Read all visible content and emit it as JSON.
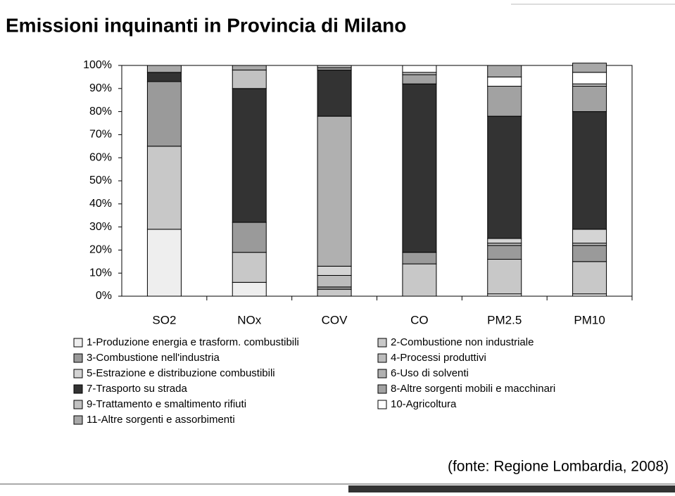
{
  "chart_data": {
    "type": "stacked_bar",
    "title": "Emissioni inquinanti in Provincia di Milano",
    "source": "(fonte: Regione Lombardia, 2008)",
    "categories": [
      "SO2",
      "NOx",
      "COV",
      "CO",
      "PM2.5",
      "PM10"
    ],
    "ylim": [
      0,
      100
    ],
    "yticks": [
      {
        "value": 0,
        "label": "0%"
      },
      {
        "value": 10,
        "label": "10%"
      },
      {
        "value": 20,
        "label": "20%"
      },
      {
        "value": 30,
        "label": "30%"
      },
      {
        "value": 40,
        "label": "40%"
      },
      {
        "value": 50,
        "label": "50%"
      },
      {
        "value": 60,
        "label": "60%"
      },
      {
        "value": 70,
        "label": "70%"
      },
      {
        "value": 80,
        "label": "80%"
      },
      {
        "value": 90,
        "label": "90%"
      },
      {
        "value": 100,
        "label": "100%"
      }
    ],
    "series": [
      {
        "name": "1-Produzione energia e trasform. combustibili",
        "color": "#eeeeee",
        "values": [
          29,
          6,
          0,
          0,
          1,
          1
        ]
      },
      {
        "name": "2-Combustione non industriale",
        "color": "#c8c8c8",
        "values": [
          36,
          13,
          3,
          14,
          15,
          14
        ]
      },
      {
        "name": "3-Combustione nell'industria",
        "color": "#9a9a9a",
        "values": [
          28,
          13,
          1,
          5,
          6,
          7
        ]
      },
      {
        "name": "4-Processi produttivi",
        "color": "#bcbcbc",
        "values": [
          0,
          0,
          5,
          0,
          1,
          1
        ]
      },
      {
        "name": "5-Estrazione e distribuzione combustibili",
        "color": "#d4d4d4",
        "values": [
          0,
          0,
          4,
          0,
          2,
          6
        ]
      },
      {
        "name": "6-Uso di solventi",
        "color": "#b0b0b0",
        "values": [
          0,
          0,
          65,
          0,
          0,
          0
        ]
      },
      {
        "name": "7-Trasporto su strada",
        "color": "#333333",
        "values": [
          4,
          58,
          20,
          73,
          53,
          51
        ]
      },
      {
        "name": "8-Altre sorgenti mobili e macchinari",
        "color": "#a2a2a2",
        "values": [
          0,
          0,
          1,
          4,
          13,
          11
        ]
      },
      {
        "name": "9-Trattamento e smaltimento rifiuti",
        "color": "#c2c2c2",
        "values": [
          0,
          8,
          1,
          1,
          0,
          1
        ]
      },
      {
        "name": "10-Agricoltura",
        "color": "#ffffff",
        "values": [
          0,
          0,
          0,
          3,
          4,
          5
        ]
      },
      {
        "name": "11-Altre sorgenti e assorbimenti",
        "color": "#a8a8a8",
        "values": [
          3,
          2,
          0,
          0,
          5,
          4
        ]
      }
    ]
  }
}
